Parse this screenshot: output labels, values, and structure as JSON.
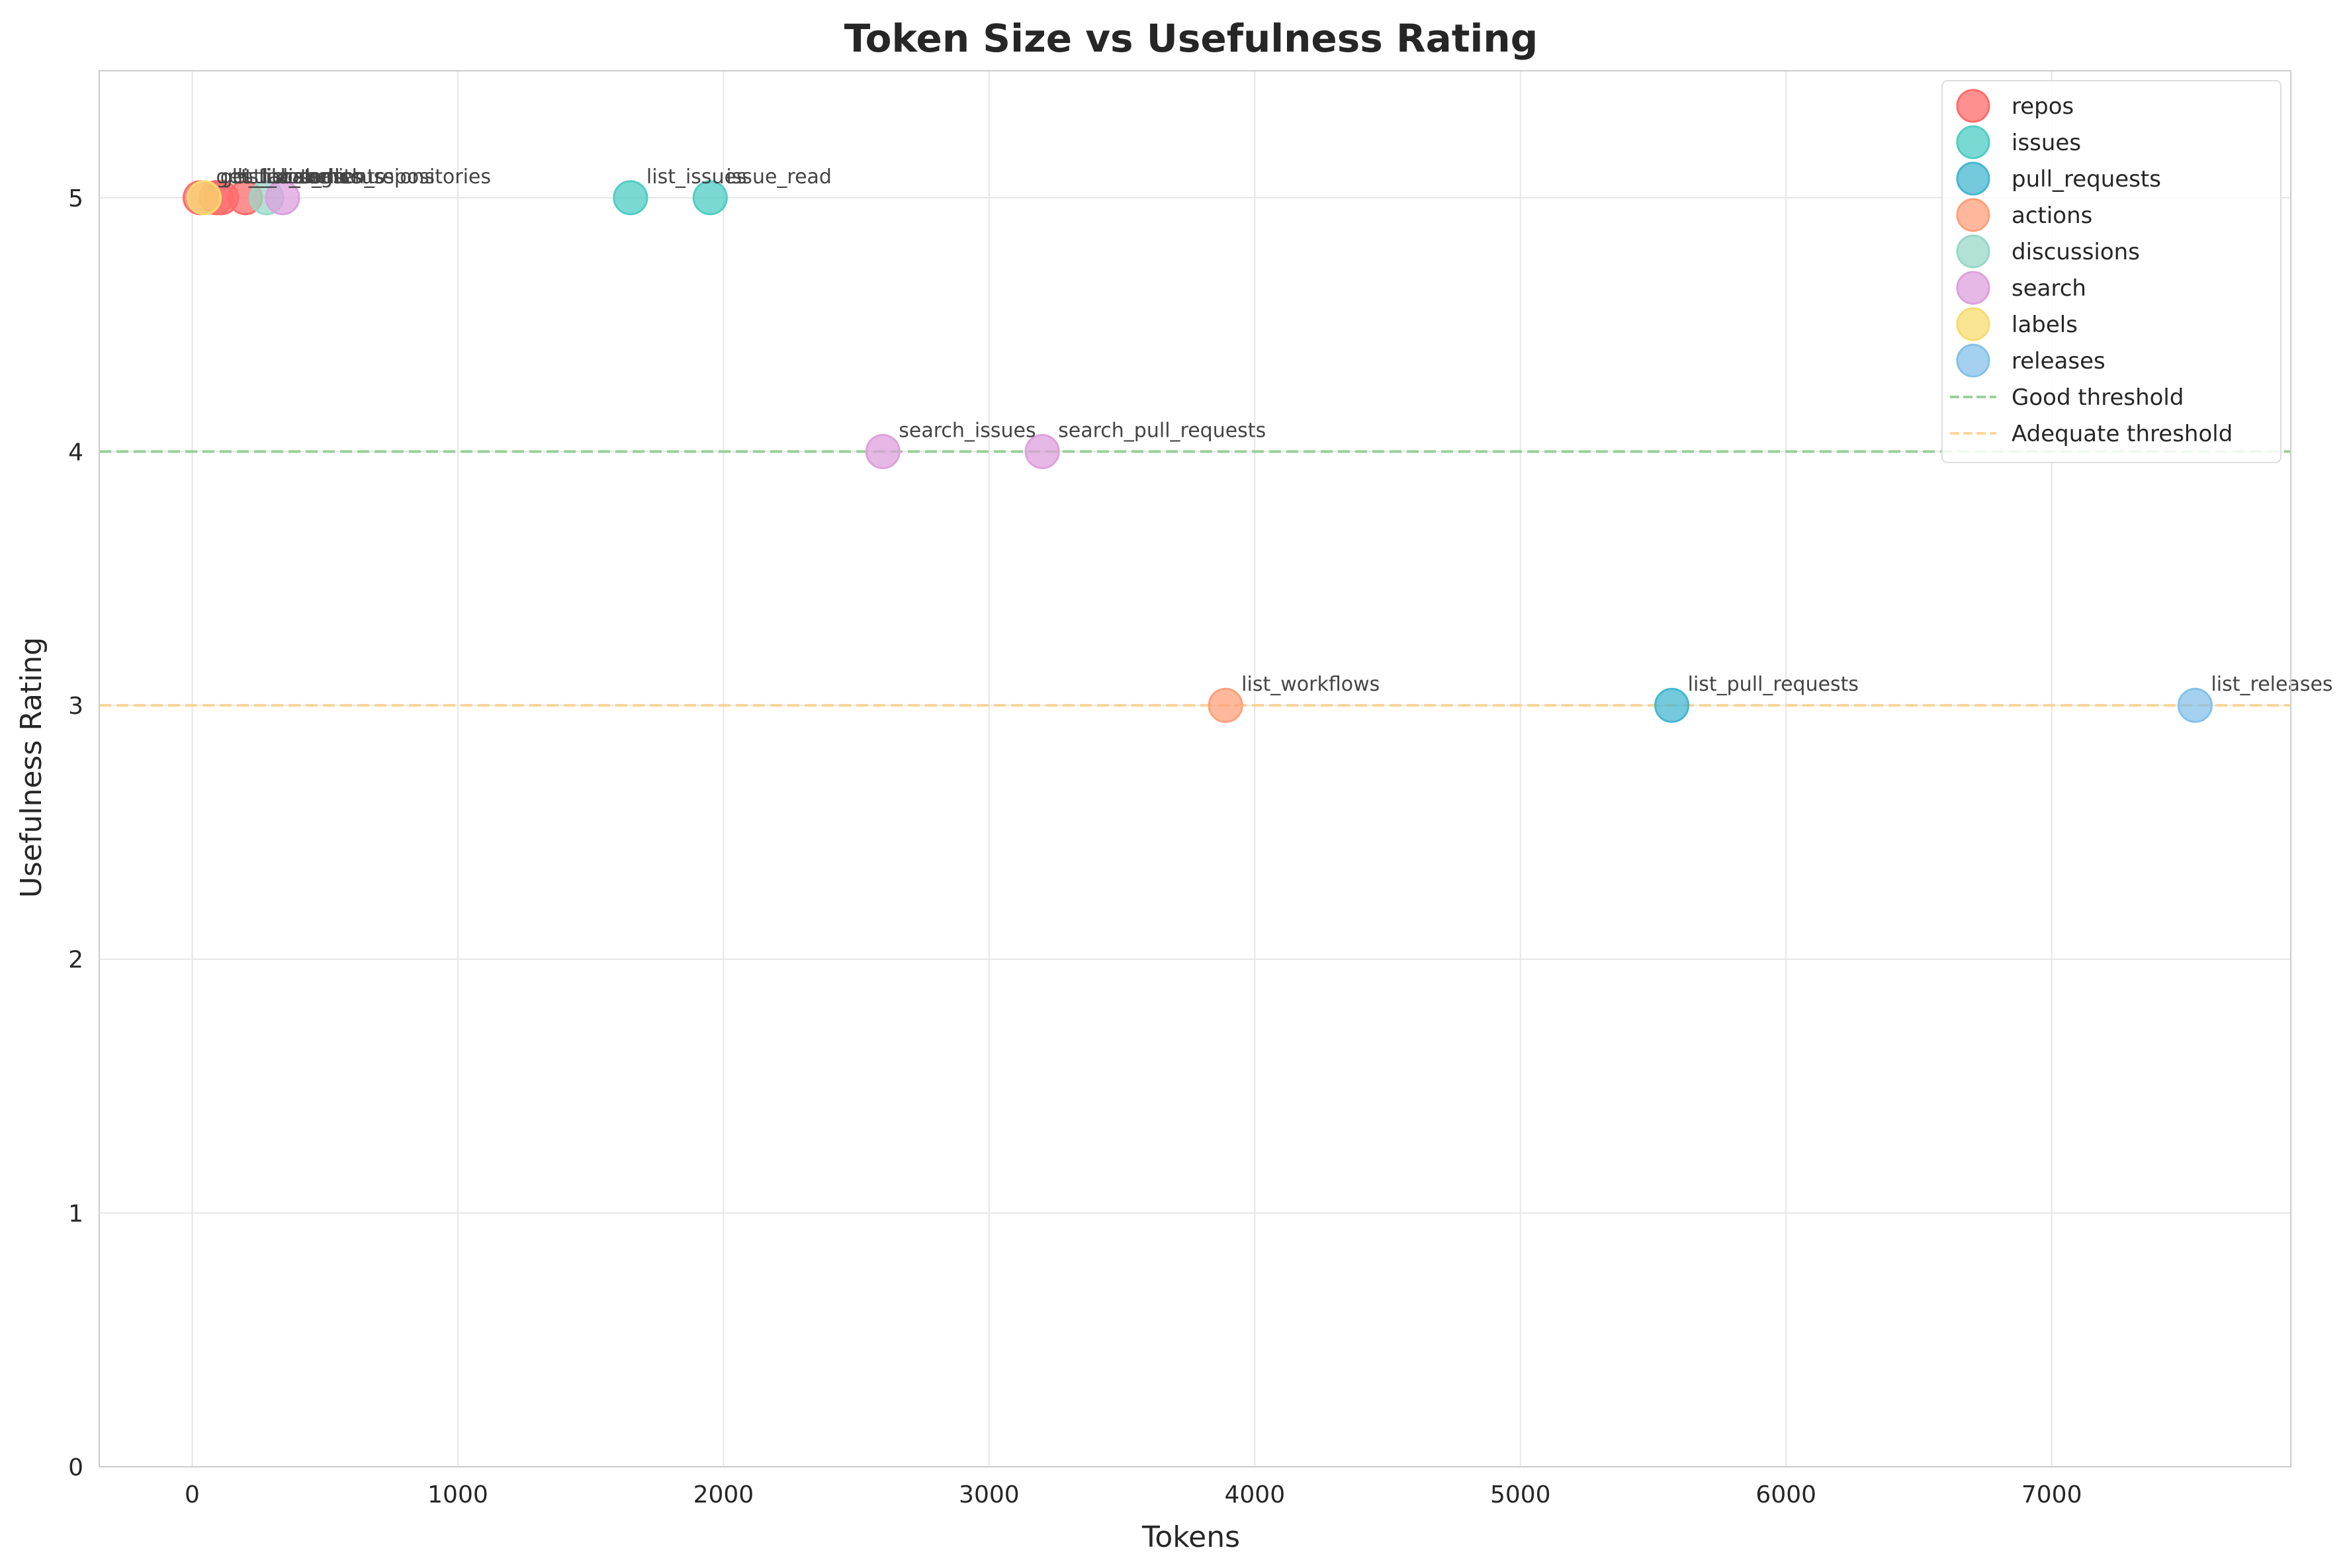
{
  "chart_data": {
    "type": "scatter",
    "title": "Token Size vs Usefulness Rating",
    "xlabel": "Tokens",
    "ylabel": "Usefulness Rating",
    "xlim": [
      -350,
      7900
    ],
    "ylim": [
      0,
      5.5
    ],
    "xticks": [
      "0",
      "1000",
      "2000",
      "3000",
      "4000",
      "5000",
      "6000",
      "7000"
    ],
    "yticks": [
      "0",
      "1",
      "2",
      "3",
      "4",
      "5"
    ],
    "grid": true,
    "legend_position": "top-right",
    "series": [
      {
        "name": "repos",
        "color": "#ff6b6b",
        "points": [
          {
            "x": 30,
            "y": 5,
            "label": "get_file_contents"
          },
          {
            "x": 90,
            "y": 5,
            "label": "list_branches"
          },
          {
            "x": 110,
            "y": 5,
            "label": "list_commits"
          },
          {
            "x": 200,
            "y": 5,
            "label": "list_tags"
          }
        ]
      },
      {
        "name": "issues",
        "color": "#4ecdc4",
        "points": [
          {
            "x": 1650,
            "y": 5,
            "label": "list_issues"
          },
          {
            "x": 1950,
            "y": 5,
            "label": "issue_read"
          }
        ]
      },
      {
        "name": "pull_requests",
        "color": "#45b7d1",
        "points": [
          {
            "x": 5570,
            "y": 3,
            "label": "list_pull_requests"
          }
        ]
      },
      {
        "name": "actions",
        "color": "#ffa07a",
        "points": [
          {
            "x": 3890,
            "y": 3,
            "label": "list_workflows"
          }
        ]
      },
      {
        "name": "discussions",
        "color": "#98d8c8",
        "points": [
          {
            "x": 280,
            "y": 5,
            "label": "list_discussions"
          }
        ]
      },
      {
        "name": "search",
        "color": "#dda0dd",
        "points": [
          {
            "x": 340,
            "y": 5,
            "label": "search_repositories"
          },
          {
            "x": 2600,
            "y": 4,
            "label": "search_issues"
          },
          {
            "x": 3200,
            "y": 4,
            "label": "search_pull_requests"
          }
        ]
      },
      {
        "name": "labels",
        "color": "#f7dc6f",
        "points": [
          {
            "x": 45,
            "y": 5,
            "label": "get_label"
          }
        ]
      },
      {
        "name": "releases",
        "color": "#85c1e9",
        "points": [
          {
            "x": 7540,
            "y": 3,
            "label": "list_releases"
          }
        ]
      }
    ],
    "thresholds": [
      {
        "name": "Good threshold",
        "y": 4,
        "color": "#82c882"
      },
      {
        "name": "Adequate threshold",
        "y": 3,
        "color": "#ffcc80"
      }
    ]
  }
}
